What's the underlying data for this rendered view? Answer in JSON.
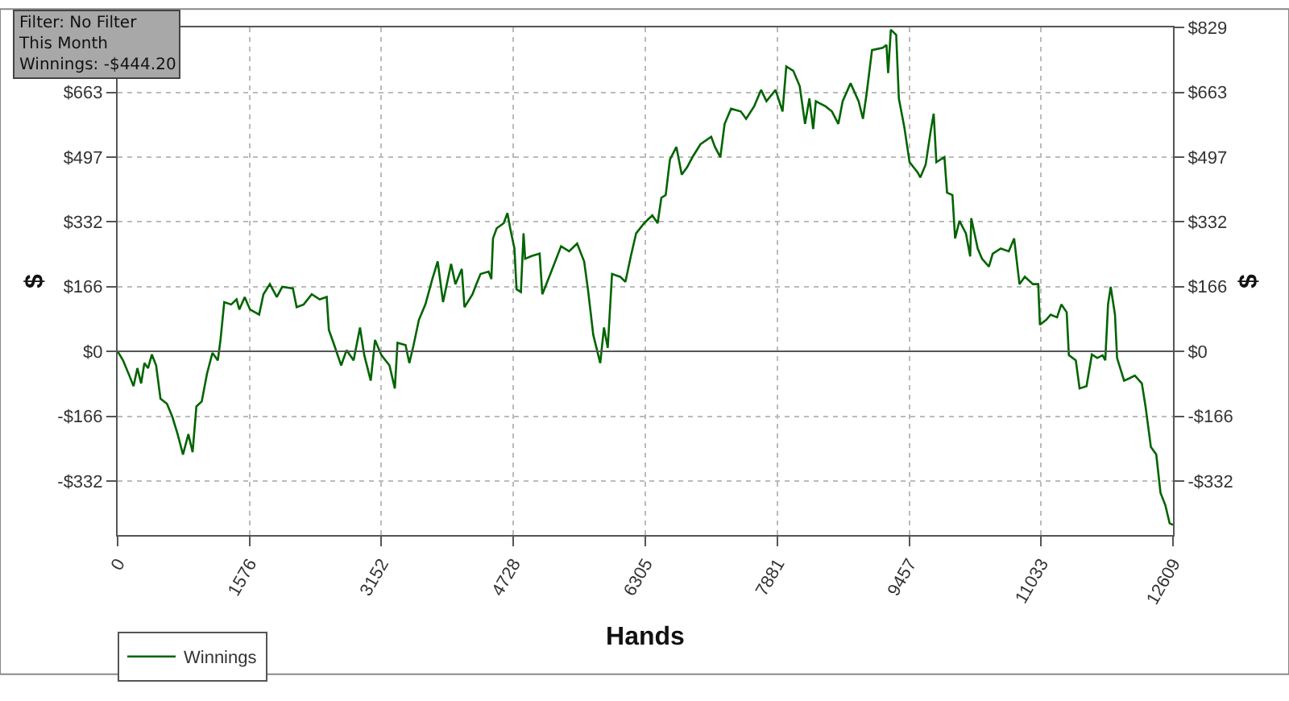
{
  "chart_data": {
    "type": "line",
    "xlabel": "Hands",
    "ylabel": "$",
    "y2label": "$",
    "annotations": [
      "Filter: No Filter\nThis Month\nWinnings: -$444.20"
    ],
    "x": [
      0,
      65,
      140,
      190,
      236,
      281,
      320,
      364,
      409,
      460,
      512,
      589,
      653,
      717,
      781,
      845,
      896,
      941,
      1005,
      1069,
      1133,
      1197,
      1229,
      1274,
      1357,
      1421,
      1454,
      1518,
      1582,
      1691,
      1742,
      1819,
      1902,
      1966,
      2094,
      2139,
      2223,
      2319,
      2415,
      2498,
      2524,
      2588,
      2671,
      2735,
      2819,
      2896,
      2947,
      3024,
      3075,
      3152,
      3248,
      3312,
      3344,
      3440,
      3485,
      3536,
      3600,
      3677,
      3760,
      3824,
      3888,
      3984,
      4036,
      4112,
      4144,
      4240,
      4273,
      4336,
      4433,
      4465,
      4485,
      4529,
      4613,
      4657,
      4690,
      4741,
      4766,
      4818,
      4850,
      4869,
      4946,
      5042,
      5074,
      5170,
      5298,
      5394,
      5490,
      5574,
      5619,
      5683,
      5766,
      5811,
      5856,
      5907,
      6003,
      6067,
      6131,
      6195,
      6291,
      6388,
      6452,
      6496,
      6548,
      6599,
      6676,
      6740,
      6804,
      6868,
      6964,
      7092,
      7137,
      7201,
      7252,
      7329,
      7445,
      7509,
      7605,
      7688,
      7752,
      7861,
      7944,
      7989,
      8072,
      8149,
      8213,
      8265,
      8310,
      8342,
      8457,
      8534,
      8611,
      8662,
      8757,
      8853,
      8905,
      8949,
      9013,
      9142,
      9186,
      9206,
      9238,
      9302,
      9334,
      9398,
      9462,
      9558,
      9590,
      9654,
      9718,
      9750,
      9782,
      9878,
      9910,
      9974,
      10006,
      10058,
      10135,
      10186,
      10199,
      10276,
      10327,
      10410,
      10455,
      10551,
      10647,
      10711,
      10775,
      10839,
      10936,
      10999,
      11019,
      11096,
      11147,
      11224,
      11275,
      11339,
      11365,
      11448,
      11493,
      11576,
      11640,
      11704,
      11768,
      11800,
      11833,
      11865,
      11916,
      11941,
      12025,
      12089,
      12153,
      12237,
      12281,
      12345,
      12409,
      12460,
      12518,
      12569,
      12609
    ],
    "series": [
      {
        "name": "Winnings",
        "color": "#006400",
        "values": [
          0,
          -23,
          -62,
          -89,
          -43,
          -82,
          -30,
          -43,
          -8,
          -36,
          -121,
          -134,
          -167,
          -212,
          -264,
          -212,
          -258,
          -141,
          -128,
          -56,
          -4,
          -23,
          29,
          126,
          120,
          133,
          107,
          139,
          107,
          94,
          146,
          172,
          139,
          165,
          161,
          113,
          120,
          146,
          133,
          139,
          55,
          16,
          -36,
          3,
          -23,
          61,
          -10,
          -75,
          29,
          -10,
          -36,
          -95,
          22,
          16,
          -30,
          16,
          81,
          120,
          185,
          230,
          126,
          224,
          172,
          211,
          113,
          146,
          165,
          198,
          204,
          185,
          289,
          315,
          328,
          354,
          315,
          263,
          159,
          152,
          302,
          237,
          244,
          250,
          146,
          198,
          269,
          256,
          276,
          230,
          159,
          42,
          -30,
          61,
          9,
          198,
          191,
          178,
          243,
          302,
          328,
          348,
          328,
          393,
          400,
          491,
          523,
          452,
          471,
          497,
          530,
          549,
          523,
          497,
          582,
          621,
          614,
          595,
          627,
          669,
          640,
          669,
          614,
          729,
          718,
          679,
          582,
          647,
          569,
          640,
          627,
          614,
          582,
          640,
          686,
          640,
          595,
          660,
          771,
          777,
          784,
          712,
          823,
          810,
          647,
          575,
          484,
          458,
          445,
          478,
          569,
          608,
          484,
          497,
          406,
          400,
          289,
          334,
          302,
          243,
          341,
          263,
          237,
          217,
          250,
          263,
          256,
          289,
          172,
          191,
          172,
          172,
          68,
          81,
          94,
          87,
          120,
          100,
          -10,
          -23,
          -95,
          -89,
          -8,
          -17,
          -10,
          -23,
          120,
          165,
          94,
          -17,
          -75,
          -69,
          -62,
          -82,
          -141,
          -245,
          -264,
          -362,
          -394,
          -440,
          -444
        ]
      }
    ],
    "xlim": [
      0,
      12609
    ],
    "xticks": [
      0,
      1576,
      3152,
      4728,
      6305,
      7881,
      9457,
      11033,
      12609
    ],
    "ylim": [
      -470,
      829
    ],
    "yticks": [
      {
        "value": -332,
        "label": "-$332"
      },
      {
        "value": -166,
        "label": "-$166"
      },
      {
        "value": 0,
        "label": "$0"
      },
      {
        "value": 166,
        "label": "$166"
      },
      {
        "value": 332,
        "label": "$332"
      },
      {
        "value": 497,
        "label": "$497"
      },
      {
        "value": 663,
        "label": "$663"
      },
      {
        "value": 829,
        "label": null
      }
    ],
    "y2lim": [
      -470,
      829
    ],
    "y2ticks": [
      {
        "value": -332,
        "label": "-$332"
      },
      {
        "value": -166,
        "label": "-$166"
      },
      {
        "value": 0,
        "label": "$0"
      },
      {
        "value": 166,
        "label": "$166"
      },
      {
        "value": 332,
        "label": "$332"
      },
      {
        "value": 497,
        "label": "$497"
      },
      {
        "value": 663,
        "label": "$663"
      },
      {
        "value": 829,
        "label": "$829"
      }
    ],
    "ref_lines": [
      {
        "axis": "y",
        "value": 0,
        "color": "#555555",
        "line_style": "solid"
      }
    ],
    "grid": true,
    "legend": "bottom left",
    "line_style": "solid",
    "marker": "none"
  }
}
